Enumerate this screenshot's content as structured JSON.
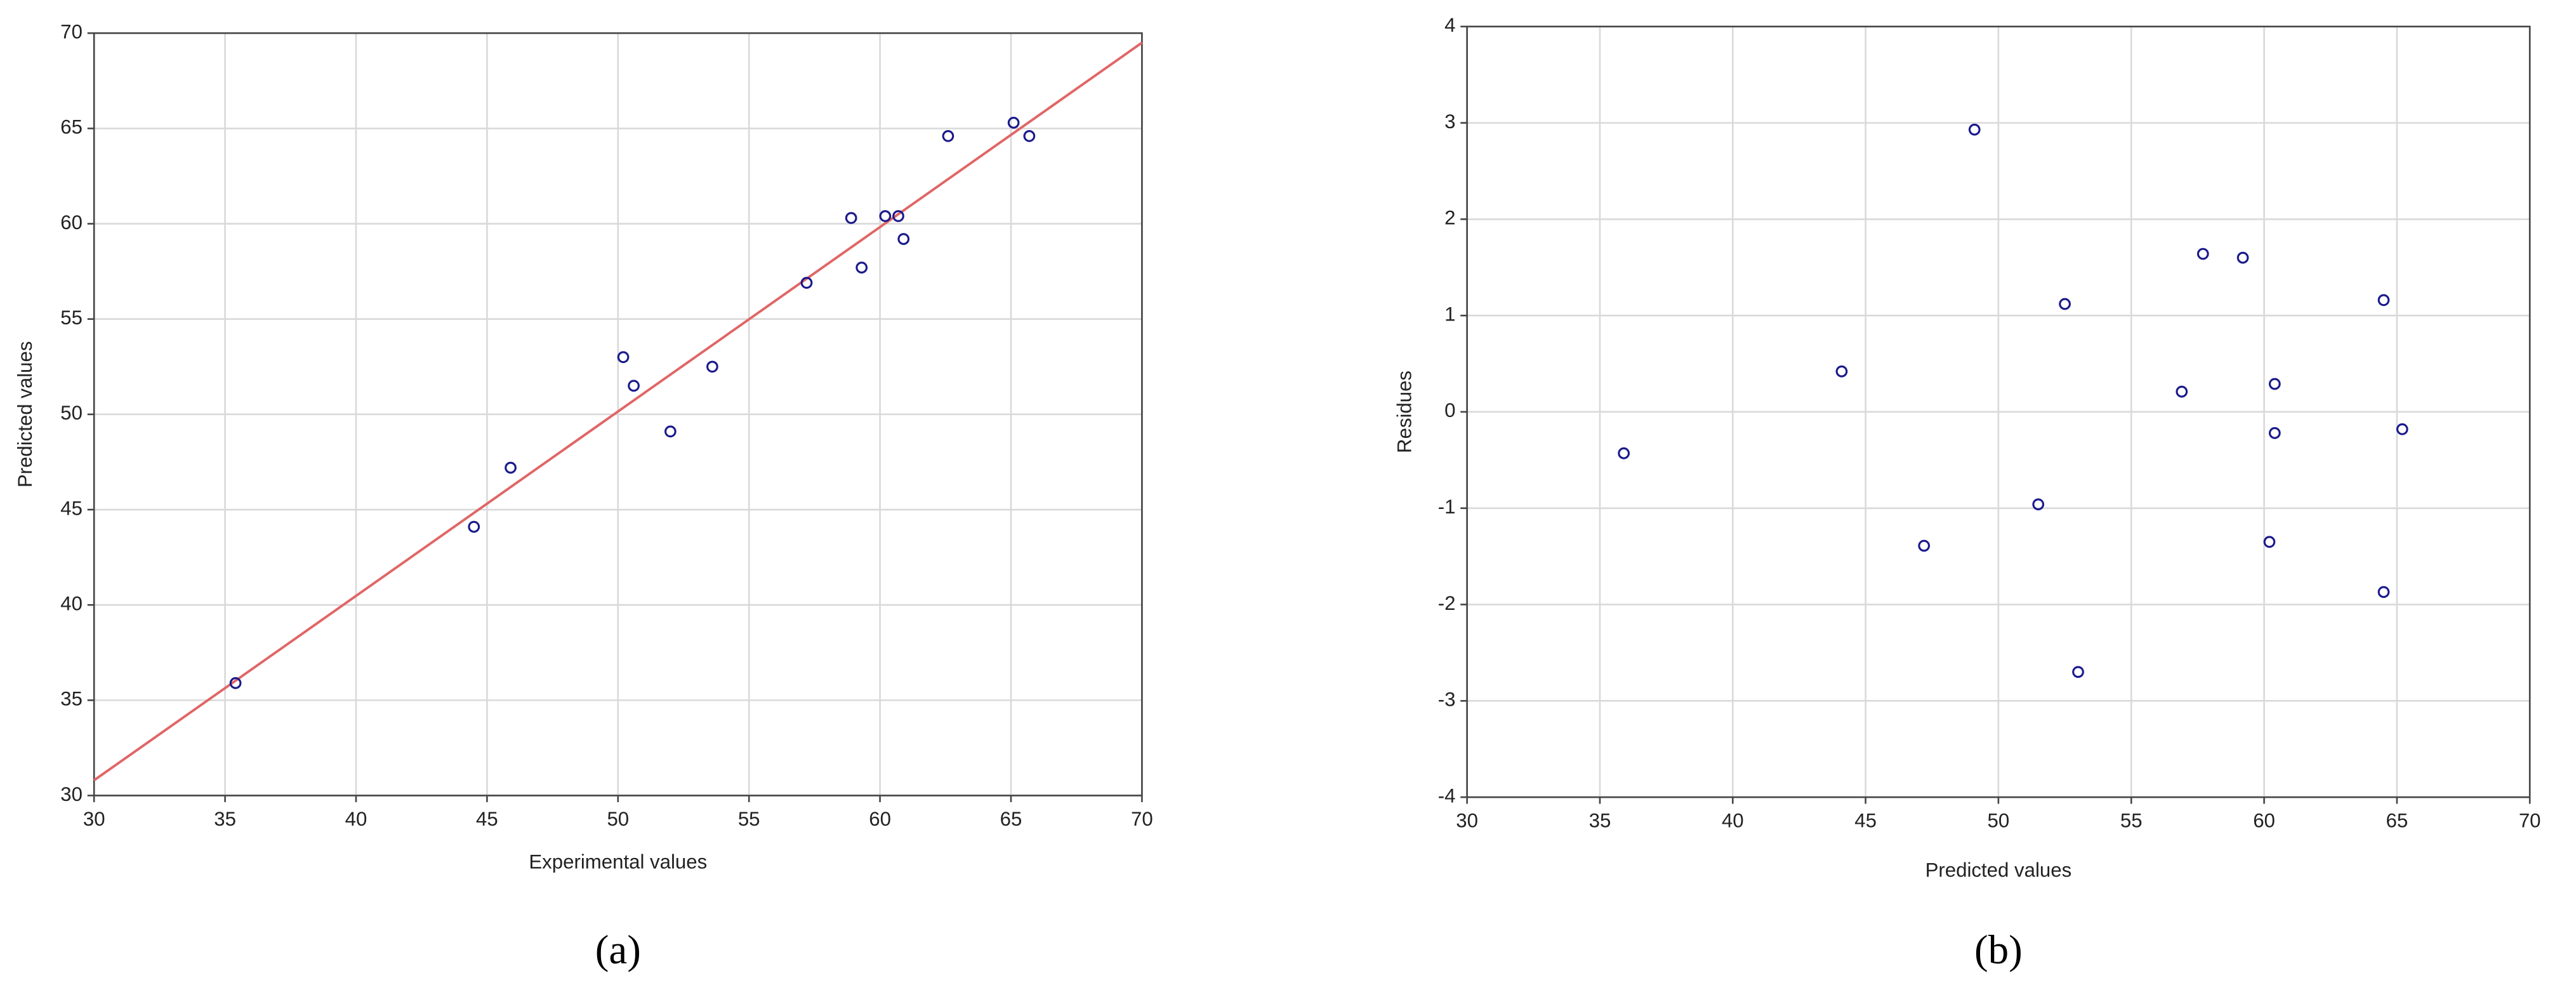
{
  "chart_data": [
    {
      "type": "scatter",
      "caption": "(a)",
      "xlabel": "Experimental values",
      "ylabel": "Predicted values",
      "xlim": [
        30,
        70
      ],
      "xticks": [
        30,
        35,
        40,
        45,
        50,
        55,
        60,
        65,
        70
      ],
      "ylim": [
        30,
        70
      ],
      "yticks": [
        30,
        35,
        40,
        45,
        50,
        55,
        60,
        65,
        70
      ],
      "grid": true,
      "series": [
        {
          "type": "scatter",
          "color": "#1a1a8c",
          "x": [
            35.4,
            44.5,
            45.9,
            50.2,
            50.6,
            52.0,
            53.6,
            57.2,
            58.9,
            59.3,
            60.2,
            60.7,
            60.9,
            62.6,
            65.1,
            65.7
          ],
          "values": [
            35.9,
            44.1,
            47.2,
            53.0,
            51.5,
            49.1,
            52.5,
            56.9,
            60.3,
            57.7,
            60.4,
            60.4,
            59.2,
            64.6,
            65.3,
            64.6
          ]
        },
        {
          "type": "line",
          "color": "#e06666",
          "x": [
            30,
            70
          ],
          "values": [
            30.8,
            69.5
          ]
        }
      ]
    },
    {
      "type": "scatter",
      "caption": "(b)",
      "xlabel": "Predicted values",
      "ylabel": "Residues",
      "xlim": [
        30,
        70
      ],
      "xticks": [
        30,
        35,
        40,
        45,
        50,
        55,
        60,
        65,
        70
      ],
      "ylim": [
        -4,
        4
      ],
      "yticks": [
        -4,
        -3,
        -2,
        -1,
        0,
        1,
        2,
        3,
        4
      ],
      "grid": true,
      "series": [
        {
          "type": "scatter",
          "color": "#1a1a8c",
          "x": [
            35.9,
            44.1,
            47.2,
            49.1,
            51.5,
            52.5,
            53.0,
            56.9,
            57.7,
            59.2,
            60.2,
            60.4,
            60.4,
            64.5,
            64.5,
            65.2
          ],
          "values": [
            -0.43,
            0.42,
            -1.39,
            2.93,
            -0.96,
            1.12,
            -2.7,
            0.21,
            1.64,
            1.6,
            -1.35,
            0.29,
            -0.22,
            1.16,
            -1.87,
            -0.18
          ]
        }
      ]
    }
  ]
}
